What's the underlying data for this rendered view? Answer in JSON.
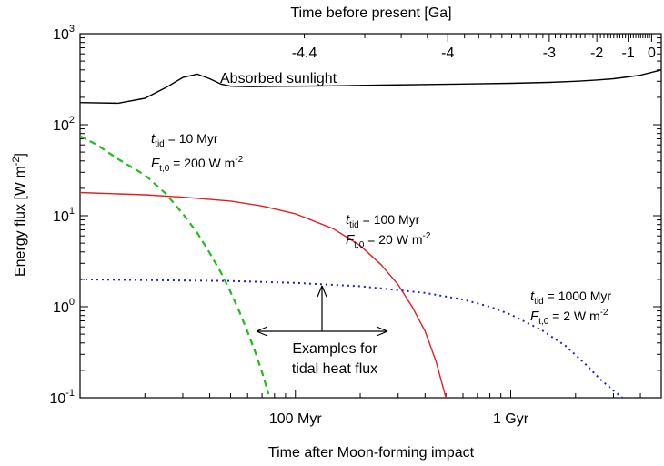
{
  "chart_data": {
    "type": "line",
    "title": "",
    "xlabel": "Time after Moon-forming impact",
    "ylabel": "Energy flux [W m",
    "ylabel_sup": "-2",
    "ylabel_end": "]",
    "x_scale": "log",
    "y_scale": "log",
    "xlim_myr": [
      10,
      5000
    ],
    "ylim": [
      0.1,
      1000
    ],
    "x_ticks": [
      {
        "value": 100,
        "label": "100 Myr"
      },
      {
        "value": 1000,
        "label": "1 Gyr"
      }
    ],
    "y_ticks": [
      {
        "value": 1000,
        "base": "10",
        "exp": "3"
      },
      {
        "value": 100,
        "base": "10",
        "exp": "2"
      },
      {
        "value": 10,
        "base": "10",
        "exp": "1"
      },
      {
        "value": 1,
        "base": "10",
        "exp": "0"
      },
      {
        "value": 0.1,
        "base": "10",
        "exp": "-1"
      }
    ],
    "top_axis": {
      "label": "Time before present [Ga]",
      "ticks": [
        {
          "label": "-4.4",
          "age_ga": 4.4
        },
        {
          "label": "-4",
          "age_ga": 4.0
        },
        {
          "label": "-3",
          "age_ga": 3.0
        },
        {
          "label": "-2",
          "age_ga": 2.0
        },
        {
          "label": "-1",
          "age_ga": 1.0
        },
        {
          "label": "0",
          "age_ga": 0.0
        }
      ]
    },
    "series": [
      {
        "name": "Absorbed sunlight",
        "color": "#000000",
        "dash": "solid",
        "x": [
          10,
          15,
          20,
          25,
          30,
          35,
          40,
          45,
          50,
          60,
          70,
          80,
          100,
          150,
          250,
          500,
          1000,
          1500,
          2000,
          2500,
          3000,
          3500,
          4000,
          4500,
          5000
        ],
        "y": [
          175,
          172,
          195,
          255,
          330,
          360,
          320,
          280,
          265,
          262,
          263,
          264,
          265,
          267,
          272,
          278,
          285,
          292,
          300,
          310,
          320,
          335,
          350,
          375,
          400
        ]
      },
      {
        "name": "t_tid = 10 Myr",
        "color": "#22bb22",
        "dash": "dashed",
        "x": [
          10,
          12,
          15,
          20,
          25,
          30,
          35,
          40,
          45,
          50,
          55,
          60,
          65,
          70,
          75
        ],
        "y": [
          75,
          60,
          42,
          28,
          17.5,
          10.5,
          6.5,
          3.9,
          2.4,
          1.45,
          0.88,
          0.53,
          0.32,
          0.19,
          0.11
        ]
      },
      {
        "name": "t_tid = 100 Myr",
        "color": "#e02020",
        "dash": "solid",
        "x": [
          10,
          20,
          30,
          50,
          70,
          100,
          150,
          200,
          250,
          300,
          350,
          400,
          450,
          500
        ],
        "y": [
          18,
          17,
          16,
          14.5,
          12.8,
          10.5,
          7.2,
          4.7,
          2.9,
          1.75,
          0.98,
          0.54,
          0.25,
          0.1
        ]
      },
      {
        "name": "t_tid = 1000 Myr",
        "color": "#2222cc",
        "dash": "dotted",
        "x": [
          10,
          50,
          100,
          200,
          400,
          600,
          800,
          1000,
          1400,
          1800,
          2200,
          2600,
          3000,
          3300
        ],
        "y": [
          2.0,
          1.92,
          1.83,
          1.68,
          1.42,
          1.2,
          1.0,
          0.82,
          0.55,
          0.37,
          0.24,
          0.16,
          0.12,
          0.1
        ]
      }
    ],
    "annotations": [
      {
        "key": "sun",
        "text": "Absorbed sunlight"
      },
      {
        "key": "a10",
        "label_sub": "tid",
        "line1_rest": " = 10 Myr",
        "line2_sub": "t,0",
        "line2_rest": " = 200 W m",
        "sup": "-2"
      },
      {
        "key": "a100",
        "label_sub": "tid",
        "line1_rest": " = 100 Myr",
        "line2_sub": "t,0",
        "line2_rest": " = 20 W m",
        "sup": "-2"
      },
      {
        "key": "a1000",
        "label_sub": "tid",
        "line1_rest": " = 1000 Myr",
        "line2_sub": "t,0",
        "line2_rest": " = 2 W m",
        "sup": "-2"
      },
      {
        "key": "examples",
        "text1": "Examples for",
        "text2": "tidal heat flux"
      }
    ],
    "symbols": {
      "t": "t",
      "F": "F"
    }
  }
}
